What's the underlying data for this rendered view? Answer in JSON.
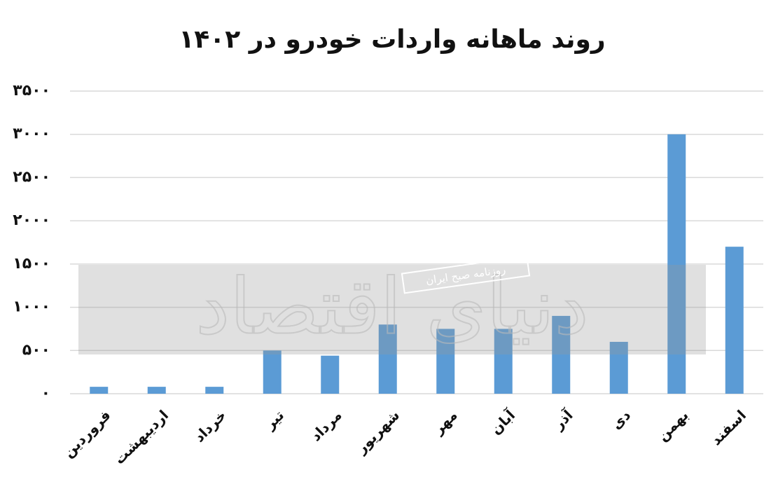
{
  "chart_data": {
    "type": "bar",
    "title": "روند ماهانه واردات خودرو در ۱۴۰۲",
    "categories": [
      "فروردین",
      "اردیبهشت",
      "خرداد",
      "تیر",
      "مرداد",
      "شهریور",
      "مهر",
      "آبان",
      "آذر",
      "دی",
      "بهمن",
      "اسفند"
    ],
    "values": [
      80,
      80,
      80,
      500,
      440,
      800,
      750,
      750,
      900,
      600,
      3000,
      1700
    ],
    "color": "#5b9bd5",
    "ylim": [
      0,
      3500
    ],
    "yticks": [
      {
        "value": 0,
        "label": "۰"
      },
      {
        "value": 500,
        "label": "۵۰۰"
      },
      {
        "value": 1000,
        "label": "۱۰۰۰"
      },
      {
        "value": 1500,
        "label": "۱۵۰۰"
      },
      {
        "value": 2000,
        "label": "۲۰۰۰"
      },
      {
        "value": 2500,
        "label": "۲۵۰۰"
      },
      {
        "value": 3000,
        "label": "۳۰۰۰"
      },
      {
        "value": 3500,
        "label": "۳۵۰۰"
      }
    ],
    "grid": true,
    "watermark": "دنیای اقتصاد",
    "watermark_subtitle": "روزنامه صبح ایران"
  }
}
